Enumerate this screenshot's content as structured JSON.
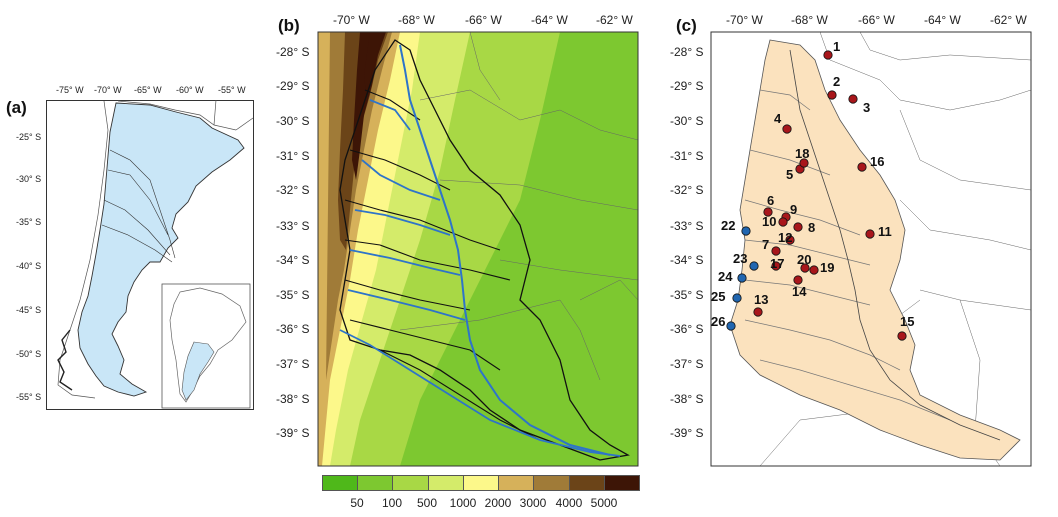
{
  "panels": {
    "a": {
      "label": "(a)",
      "lon_ticks": [
        "-75° W",
        "-70° W",
        "-65° W",
        "-60° W",
        "-55° W"
      ],
      "lat_ticks": [
        "-25° S",
        "-30° S",
        "-35° S",
        "-40° S",
        "-45° S",
        "-50° S",
        "-55° S"
      ]
    },
    "b": {
      "label": "(b)",
      "lon_ticks": [
        "-70° W",
        "-68° W",
        "-66° W",
        "-64° W",
        "-62° W"
      ],
      "lat_ticks": [
        "-28° S",
        "-29° S",
        "-30° S",
        "-31° S",
        "-32° S",
        "-33° S",
        "-34° S",
        "-35° S",
        "-36° S",
        "-37° S",
        "-38° S",
        "-39° S"
      ]
    },
    "c": {
      "label": "(c)",
      "lon_ticks": [
        "-70° W",
        "-68° W",
        "-66° W",
        "-64° W",
        "-62° W"
      ],
      "lat_ticks": [
        "-28° S",
        "-29° S",
        "-30° S",
        "-31° S",
        "-32° S",
        "-33° S",
        "-34° S",
        "-35° S",
        "-36° S",
        "-37° S",
        "-38° S",
        "-39° S"
      ]
    }
  },
  "elevation_legend": {
    "colors": [
      "#4fb81a",
      "#7dc830",
      "#a8d845",
      "#d4eb6a",
      "#fcf88a",
      "#d6b15a",
      "#a07b38",
      "#6b4418",
      "#3d1506"
    ],
    "labels": [
      "50",
      "100",
      "500",
      "1000",
      "2000",
      "3000",
      "4000",
      "5000"
    ]
  },
  "stations": {
    "red_color": "#a8161b",
    "blue_color": "#2166b0",
    "red": [
      "1",
      "2",
      "3",
      "4",
      "5",
      "6",
      "7",
      "8",
      "9",
      "10",
      "11",
      "12",
      "13",
      "14",
      "15",
      "16",
      "17",
      "18",
      "19",
      "20"
    ],
    "blue": [
      "22",
      "23",
      "24",
      "25",
      "26"
    ]
  },
  "colors": {
    "argentina_fill": "#c9e6f7",
    "basin_fill": "#fbe2be",
    "river": "#2e74c9"
  }
}
